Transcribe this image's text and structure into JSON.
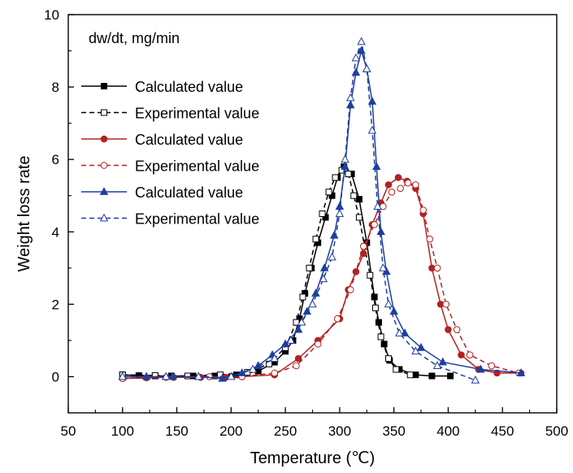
{
  "chart_data": {
    "type": "line",
    "annotation": "dw/dt,  mg/min",
    "xlabel": "Temperature (℃)",
    "ylabel": "Weight loss rate",
    "xlim": [
      50,
      500
    ],
    "ylim": [
      -1,
      10
    ],
    "xticks": [
      50,
      100,
      150,
      200,
      250,
      300,
      350,
      400,
      450,
      500
    ],
    "yticks": [
      0,
      2,
      4,
      6,
      8,
      10
    ],
    "grid": false,
    "legend_position": "top-left",
    "series": [
      {
        "name": "Calculated value",
        "color": "#000000",
        "dash": false,
        "marker": "square",
        "filled": true,
        "points": [
          [
            100,
            0.05
          ],
          [
            115,
            0.03
          ],
          [
            130,
            0.02
          ],
          [
            145,
            0.02
          ],
          [
            165,
            0.02
          ],
          [
            185,
            0.02
          ],
          [
            205,
            0.05
          ],
          [
            225,
            0.15
          ],
          [
            240,
            0.4
          ],
          [
            250,
            0.7
          ],
          [
            257,
            1.0
          ],
          [
            263,
            1.6
          ],
          [
            268,
            2.3
          ],
          [
            274,
            3.0
          ],
          [
            280,
            3.7
          ],
          [
            287,
            4.4
          ],
          [
            293,
            5.0
          ],
          [
            298,
            5.5
          ],
          [
            304,
            5.8
          ],
          [
            311,
            5.6
          ],
          [
            318,
            4.9
          ],
          [
            325,
            3.7
          ],
          [
            332,
            2.2
          ],
          [
            336,
            1.5
          ],
          [
            341,
            0.9
          ],
          [
            346,
            0.45
          ],
          [
            355,
            0.2
          ],
          [
            370,
            0.05
          ],
          [
            385,
            0.02
          ],
          [
            402,
            0.02
          ]
        ]
      },
      {
        "name": "Experimental value",
        "color": "#000000",
        "dash": true,
        "marker": "square",
        "filled": false,
        "points": [
          [
            100,
            0.05
          ],
          [
            130,
            0.03
          ],
          [
            160,
            0.02
          ],
          [
            190,
            0.05
          ],
          [
            215,
            0.12
          ],
          [
            235,
            0.35
          ],
          [
            250,
            0.8
          ],
          [
            260,
            1.5
          ],
          [
            266,
            2.2
          ],
          [
            272,
            3.0
          ],
          [
            278,
            3.8
          ],
          [
            284,
            4.5
          ],
          [
            290,
            5.1
          ],
          [
            296,
            5.5
          ],
          [
            302,
            5.7
          ],
          [
            308,
            5.6
          ],
          [
            313,
            5.0
          ],
          [
            318,
            4.4
          ],
          [
            323,
            3.6
          ],
          [
            328,
            2.8
          ],
          [
            333,
            1.9
          ],
          [
            338,
            1.1
          ],
          [
            345,
            0.5
          ],
          [
            352,
            0.2
          ],
          [
            365,
            0.05
          ]
        ]
      },
      {
        "name": "Calculated value",
        "color": "#b22222",
        "dash": false,
        "marker": "circle",
        "filled": true,
        "points": [
          [
            100,
            -0.05
          ],
          [
            122,
            -0.03
          ],
          [
            147,
            -0.02
          ],
          [
            172,
            -0.02
          ],
          [
            195,
            -0.02
          ],
          [
            210,
            0.0
          ],
          [
            240,
            0.05
          ],
          [
            262,
            0.5
          ],
          [
            280,
            1.0
          ],
          [
            300,
            1.6
          ],
          [
            308,
            2.4
          ],
          [
            315,
            2.9
          ],
          [
            322,
            3.4
          ],
          [
            330,
            4.2
          ],
          [
            338,
            4.8
          ],
          [
            345,
            5.3
          ],
          [
            354,
            5.5
          ],
          [
            362,
            5.4
          ],
          [
            370,
            5.2
          ],
          [
            377,
            4.5
          ],
          [
            385,
            3.0
          ],
          [
            393,
            2.0
          ],
          [
            400,
            1.3
          ],
          [
            412,
            0.6
          ],
          [
            428,
            0.2
          ],
          [
            445,
            0.1
          ],
          [
            467,
            0.1
          ]
        ]
      },
      {
        "name": "Experimental value",
        "color": "#b22222",
        "dash": true,
        "marker": "circle",
        "filled": false,
        "points": [
          [
            100,
            -0.05
          ],
          [
            140,
            -0.02
          ],
          [
            180,
            0.0
          ],
          [
            210,
            0.0
          ],
          [
            240,
            0.1
          ],
          [
            260,
            0.3
          ],
          [
            280,
            0.9
          ],
          [
            298,
            1.6
          ],
          [
            310,
            2.4
          ],
          [
            322,
            3.6
          ],
          [
            332,
            4.2
          ],
          [
            340,
            4.7
          ],
          [
            348,
            5.1
          ],
          [
            356,
            5.2
          ],
          [
            363,
            5.35
          ],
          [
            370,
            5.3
          ],
          [
            377,
            4.6
          ],
          [
            383,
            3.8
          ],
          [
            390,
            3.0
          ],
          [
            398,
            2.0
          ],
          [
            408,
            1.3
          ],
          [
            420,
            0.6
          ],
          [
            440,
            0.3
          ],
          [
            465,
            0.1
          ]
        ]
      },
      {
        "name": "Calculated value",
        "color": "#1f3f9f",
        "dash": false,
        "marker": "triangle",
        "filled": true,
        "points": [
          [
            100,
            0.0
          ],
          [
            122,
            0.0
          ],
          [
            146,
            0.0
          ],
          [
            170,
            0.0
          ],
          [
            192,
            -0.05
          ],
          [
            210,
            0.1
          ],
          [
            225,
            0.3
          ],
          [
            238,
            0.6
          ],
          [
            250,
            0.9
          ],
          [
            262,
            1.3
          ],
          [
            270,
            1.8
          ],
          [
            278,
            2.3
          ],
          [
            286,
            3.0
          ],
          [
            295,
            3.9
          ],
          [
            300,
            4.7
          ],
          [
            305,
            5.8
          ],
          [
            310,
            7.5
          ],
          [
            315,
            8.4
          ],
          [
            320,
            9.0
          ],
          [
            325,
            8.5
          ],
          [
            330,
            7.6
          ],
          [
            334,
            5.8
          ],
          [
            338,
            4.0
          ],
          [
            343,
            2.9
          ],
          [
            350,
            1.8
          ],
          [
            360,
            1.2
          ],
          [
            375,
            0.8
          ],
          [
            395,
            0.4
          ],
          [
            430,
            0.2
          ],
          [
            467,
            0.1
          ]
        ]
      },
      {
        "name": "Experimental value",
        "color": "#1f3f9f",
        "dash": true,
        "marker": "triangle",
        "filled": false,
        "points": [
          [
            100,
            0.0
          ],
          [
            140,
            0.0
          ],
          [
            170,
            0.0
          ],
          [
            200,
            0.0
          ],
          [
            220,
            0.2
          ],
          [
            240,
            0.5
          ],
          [
            255,
            1.0
          ],
          [
            265,
            1.5
          ],
          [
            275,
            2.0
          ],
          [
            285,
            2.7
          ],
          [
            293,
            3.3
          ],
          [
            300,
            4.5
          ],
          [
            305,
            6.0
          ],
          [
            310,
            7.7
          ],
          [
            315,
            8.8
          ],
          [
            320,
            9.25
          ],
          [
            325,
            8.5
          ],
          [
            330,
            6.8
          ],
          [
            335,
            4.7
          ],
          [
            340,
            3.0
          ],
          [
            345,
            2.0
          ],
          [
            355,
            1.2
          ],
          [
            370,
            0.7
          ],
          [
            390,
            0.3
          ],
          [
            425,
            -0.1
          ]
        ]
      }
    ]
  }
}
